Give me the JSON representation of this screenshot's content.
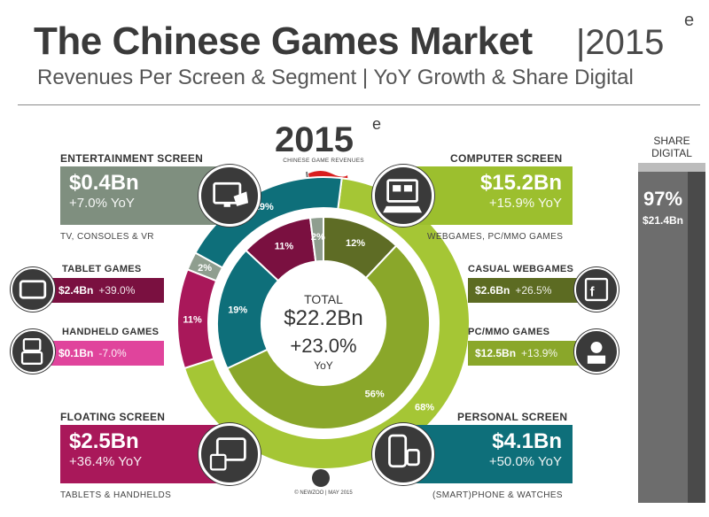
{
  "header": {
    "title": "The Chinese Games Market",
    "year": "|2015",
    "year_sup": "e",
    "subtitle": "Revenues Per Screen & Segment | YoY Growth & Share Digital"
  },
  "center": {
    "year": "2015",
    "year_sup": "e",
    "caption": "CHINESE GAME REVENUES",
    "total_label": "TOTAL",
    "total_value": "$22.2Bn",
    "total_yoy": "+23.0%",
    "total_yoy_label": "YoY"
  },
  "segments": {
    "entertainment": {
      "title": "ENTERTAINMENT SCREEN",
      "value": "$0.4Bn",
      "yoy": "+7.0% YoY",
      "sub": "TV, CONSOLES & VR",
      "color": "#7f8f7f"
    },
    "computer": {
      "title": "COMPUTER SCREEN",
      "value": "$15.2Bn",
      "yoy": "+15.9% YoY",
      "sub": "WEBGAMES, PC/MMO GAMES",
      "color": "#9cbf2e"
    },
    "floating": {
      "title": "FLOATING SCREEN",
      "value": "$2.5Bn",
      "yoy": "+36.4% YoY",
      "sub": "TABLETS & HANDHELDS",
      "color": "#a9185a"
    },
    "personal": {
      "title": "PERSONAL SCREEN",
      "value": "$4.1Bn",
      "yoy": "+50.0% YoY",
      "sub": "(SMART)PHONE & WATCHES",
      "color": "#0e6f7a"
    }
  },
  "subsegments": {
    "tablet": {
      "title": "TABLET GAMES",
      "value": "$2.4Bn",
      "yoy": "+39.0%",
      "color": "#7a1040"
    },
    "handheld": {
      "title": "HANDHELD GAMES",
      "value": "$0.1Bn",
      "yoy": "-7.0%",
      "color": "#e0449c"
    },
    "casual": {
      "title": "CASUAL WEBGAMES",
      "value": "$2.6Bn",
      "yoy": "+26.5%",
      "color": "#5c6b22"
    },
    "pcmmo": {
      "title": "PC/MMO GAMES",
      "value": "$12.5Bn",
      "yoy": "+13.9%",
      "color": "#8aa72a"
    }
  },
  "share": {
    "label_1": "SHARE",
    "label_2": "DIGITAL",
    "pct": "97%",
    "value": "$21.4Bn",
    "fraction": 0.97
  },
  "footer": "© NEWZOO | MAY 2015",
  "chart_data": {
    "type": "donut",
    "outer_ring": [
      {
        "name": "COMPUTER SCREEN",
        "pct": 68,
        "label": "68%",
        "color": "#a5c635"
      },
      {
        "name": "FLOATING SCREEN",
        "pct": 11,
        "label": "11%",
        "color": "#a9185a"
      },
      {
        "name": "ENTERTAINMENT SCREEN",
        "pct": 2,
        "label": "2%",
        "color": "#8f9e8f"
      },
      {
        "name": "PERSONAL SCREEN",
        "pct": 19,
        "label": "19%",
        "color": "#0e6f7a"
      }
    ],
    "inner_ring": [
      {
        "name": "CASUAL WEBGAMES",
        "pct": 12,
        "label": "12%",
        "color": "#5e6c25"
      },
      {
        "name": "PC/MMO GAMES",
        "pct": 56,
        "label": "56%",
        "color": "#8aa72a"
      },
      {
        "name": "PERSONAL",
        "pct": 19,
        "label": "19%",
        "color": "#0e6f7a"
      },
      {
        "name": "FLOATING",
        "pct": 11,
        "label": "11%",
        "color": "#7a1040"
      },
      {
        "name": "ENTERTAINMENT",
        "pct": 2,
        "label": "2%",
        "color": "#8f9e8f"
      }
    ]
  }
}
